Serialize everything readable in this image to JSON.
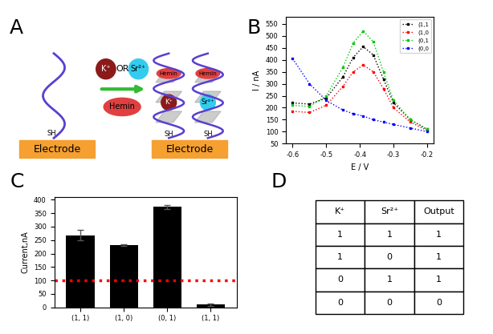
{
  "panel_labels": [
    "A",
    "B",
    "C",
    "D"
  ],
  "diagram": {
    "electrode": "Electrode",
    "thiol": "SH",
    "ions": [
      "K⁺",
      "Sr²⁺"
    ],
    "connector": "OR",
    "cofactor": "Hemin",
    "bound_ions": [
      "K⁺",
      "Sr²⁺"
    ]
  },
  "chart_data": [
    {
      "type": "line",
      "xlabel": "E / V",
      "ylabel": "I / nA",
      "x": [
        -0.6,
        -0.55,
        -0.5,
        -0.45,
        -0.42,
        -0.39,
        -0.36,
        -0.33,
        -0.3,
        -0.25,
        -0.2
      ],
      "xlim": [
        -0.62,
        -0.18
      ],
      "xticks": [
        -0.6,
        -0.5,
        -0.4,
        -0.3,
        -0.2
      ],
      "ylim": [
        50,
        580
      ],
      "yticks": [
        50,
        100,
        150,
        200,
        250,
        300,
        350,
        400,
        450,
        500,
        550
      ],
      "legend": "upper right",
      "marker": "s",
      "line_style": "dotted",
      "series": [
        {
          "name": "(1,1",
          "color": "#000000",
          "values": [
            220,
            215,
            240,
            330,
            410,
            455,
            420,
            320,
            220,
            150,
            110
          ]
        },
        {
          "name": "(1,0",
          "color": "#ff0000",
          "values": [
            185,
            180,
            210,
            290,
            350,
            378,
            350,
            280,
            200,
            140,
            105
          ]
        },
        {
          "name": "(0,1",
          "color": "#00cc00",
          "values": [
            210,
            205,
            250,
            370,
            470,
            520,
            475,
            350,
            230,
            150,
            110
          ]
        },
        {
          "name": "(0,0",
          "color": "#0000ff",
          "values": [
            405,
            300,
            230,
            190,
            175,
            165,
            150,
            140,
            130,
            115,
            100
          ]
        }
      ]
    },
    {
      "type": "bar",
      "ylabel": "Current,nA",
      "categories": [
        "(1, 1)",
        "(1, 0)",
        "(0, 1)",
        "(1, 1)"
      ],
      "values": [
        268,
        232,
        373,
        10
      ],
      "errors": [
        20,
        3,
        8,
        5
      ],
      "color": "#000000",
      "threshold": 100,
      "ylim": [
        0,
        410
      ],
      "yticks": [
        0,
        50,
        100,
        150,
        200,
        250,
        300,
        350,
        400
      ]
    }
  ],
  "table": {
    "header": [
      "K⁺",
      "Sr²⁺",
      "Output"
    ],
    "rows": [
      [
        1,
        1,
        1
      ],
      [
        1,
        0,
        1
      ],
      [
        0,
        1,
        1
      ],
      [
        0,
        0,
        0
      ]
    ]
  }
}
